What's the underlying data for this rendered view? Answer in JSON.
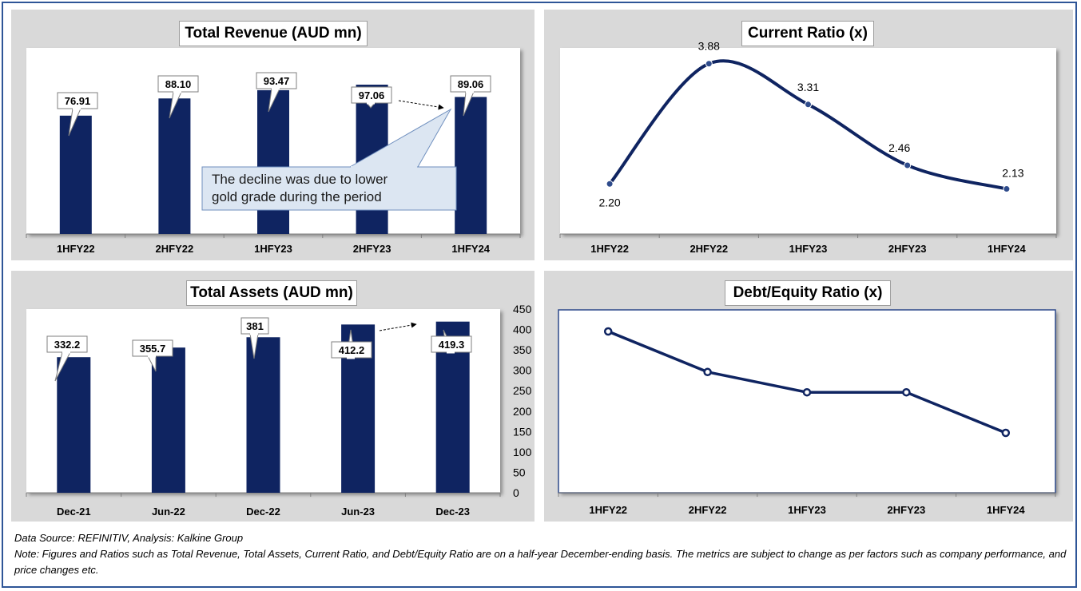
{
  "footer": {
    "source": "Data Source: REFINITIV, Analysis: Kalkine Group",
    "note": "Note: Figures and Ratios such as Total Revenue, Total Assets, Current Ratio, and Debt/Equity Ratio are on a half-year December-ending basis. The metrics are subject to change as per factors such as company performance, and price changes etc."
  },
  "colors": {
    "bar": "#0f2461",
    "panel": "#d9d9d9",
    "callout_fill": "#dce6f2",
    "callout_border": "#6f8fbe"
  },
  "chart_data": [
    {
      "id": "revenue",
      "type": "bar",
      "title": "Total Revenue (AUD mn)",
      "categories": [
        "1HFY22",
        "2HFY22",
        "1HFY23",
        "2HFY23",
        "1HFY24"
      ],
      "values": [
        76.91,
        88.1,
        93.47,
        97.06,
        89.06
      ],
      "data_labels": [
        "76.91",
        "88.10",
        "93.47",
        "97.06",
        "89.06"
      ],
      "annotation": "The decline was due to lower gold grade during the period",
      "grid": false
    },
    {
      "id": "current_ratio",
      "type": "line",
      "title": "Current Ratio (x)",
      "categories": [
        "1HFY22",
        "2HFY22",
        "1HFY23",
        "2HFY23",
        "1HFY24"
      ],
      "values": [
        2.2,
        3.88,
        3.31,
        2.46,
        2.13
      ],
      "data_labels": [
        "2.20",
        "3.88",
        "3.31",
        "2.46",
        "2.13"
      ],
      "smooth": true,
      "grid": false
    },
    {
      "id": "assets",
      "type": "bar",
      "title": "Total Assets (AUD mn)",
      "categories": [
        "Dec-21",
        "Jun-22",
        "Dec-22",
        "Jun-23",
        "Dec-23"
      ],
      "values": [
        332.2,
        355.7,
        381,
        412.2,
        419.3
      ],
      "data_labels": [
        "332.2",
        "355.7",
        "381",
        "412.2",
        "419.3"
      ],
      "ylim": [
        0,
        450
      ],
      "yticks": [
        "0",
        "50",
        "100",
        "150",
        "200",
        "250",
        "300",
        "350",
        "400",
        "450"
      ],
      "axis_position": "right",
      "grid": false
    },
    {
      "id": "debt_equity",
      "type": "line",
      "title": "Debt/Equity Ratio (x)",
      "categories": [
        "1HFY22",
        "2HFY22",
        "1HFY23",
        "2HFY23",
        "1HFY24"
      ],
      "values": [
        0.4,
        0.3,
        0.25,
        0.25,
        0.15
      ],
      "grid": false
    }
  ]
}
